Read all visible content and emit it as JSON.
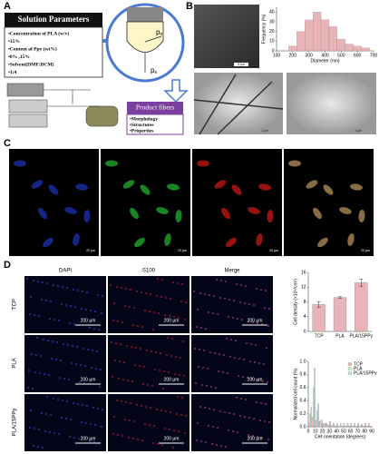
{
  "panel_a": {
    "label": "A",
    "header": "Solution Parameters",
    "params": [
      "•Concentration of PLA (w/v)",
      "•15%",
      "•Content of Ppy (wt%)",
      "•0% ,15%",
      "•Solvent(DMF:DCM)",
      "•1:4"
    ],
    "pressures": [
      {
        "main": "p",
        "sub": "n"
      },
      {
        "main": "p",
        "sub": "e"
      }
    ],
    "output_title": "Product fibers",
    "output_items": [
      "•Morphology",
      "•Structures",
      "•Properties"
    ]
  },
  "panel_b": {
    "label": "B",
    "scale_bars": [
      "5 μm",
      "1 μm",
      "1 μm"
    ]
  },
  "panel_c": {
    "label": "C",
    "scale_bars": [
      "20 μm",
      "20 μm",
      "20 μm",
      "20 μm"
    ]
  },
  "panel_d": {
    "label": "D",
    "columns": [
      "DAPI",
      "S100",
      "Merge"
    ],
    "rows": [
      "TCP",
      "PLA",
      "PLA/15PPy"
    ],
    "scale_bars": [
      [
        "200 μm",
        "200 μm",
        "200 μm"
      ],
      [
        "200 μm",
        "200 μm",
        "200 μm"
      ],
      [
        "200 μm",
        "200 μm",
        "200 μm"
      ]
    ]
  },
  "chart_data": [
    {
      "type": "histogram",
      "x_label": "Diameter (nm)",
      "y_label": "Frequency (%)",
      "bins": [
        175,
        225,
        275,
        325,
        375,
        425,
        475,
        525,
        575,
        625,
        675
      ],
      "values": [
        5,
        20,
        32,
        40,
        32,
        25,
        12,
        7,
        5,
        3
      ],
      "color": "#e8b4b8",
      "xlim": [
        100,
        700
      ],
      "xticks": [
        100,
        200,
        300,
        400,
        500,
        600,
        700
      ],
      "ylim": [
        0,
        45
      ],
      "yticks": [
        0,
        10,
        20,
        30,
        40
      ]
    },
    {
      "type": "bar",
      "y_label": "Cell density (×10⁴/cm²)",
      "categories": [
        "TCP",
        "PLA",
        "PLA/15PPy"
      ],
      "values": [
        7.3,
        9.2,
        13.2
      ],
      "errors": [
        0.8,
        0.2,
        1.0
      ],
      "color": "#e8b4b8",
      "ylim": [
        0,
        16
      ],
      "yticks": [
        0,
        4,
        8,
        12,
        16
      ]
    },
    {
      "type": "histogram",
      "x_label": "Cell orientation (degrees)",
      "y_label": "Normalized cell count (%)",
      "bins": [
        0,
        5,
        10,
        15,
        20,
        25,
        30,
        35,
        40,
        45,
        50,
        55,
        60,
        65,
        70,
        75,
        80,
        85,
        90
      ],
      "series": [
        {
          "name": "TCP",
          "color": "#e8b4b8",
          "values": [
            0.05,
            0.15,
            0.1,
            0.08,
            0.05,
            0.05,
            0.08,
            0.05,
            0.05,
            0.05,
            0.05,
            0.05,
            0.05,
            0.05,
            0.05,
            0.04,
            0.05,
            0.05
          ]
        },
        {
          "name": "PLA",
          "color": "#c7e6c0",
          "values": [
            0.2,
            0.6,
            0.25,
            0.1,
            0.05,
            0.03,
            0.02,
            0.02,
            0.01,
            0.01,
            0.01,
            0.01,
            0.01,
            0.01,
            0.01,
            0.01,
            0.01,
            0.01
          ]
        },
        {
          "name": "PLA/15PPy",
          "color": "#b8dcea",
          "values": [
            0.3,
            0.9,
            0.35,
            0.1,
            0.05,
            0.03,
            0.02,
            0.01,
            0.01,
            0.01,
            0.01,
            0.01,
            0.01,
            0.01,
            0.01,
            0.01,
            0.01,
            0.01
          ]
        }
      ],
      "xlim": [
        0,
        90
      ],
      "xticks": [
        0,
        10,
        20,
        30,
        40,
        50,
        60,
        70,
        80,
        90
      ],
      "ylim": [
        0,
        1.0
      ],
      "yticks": [
        {
          "value": 0,
          "label": "0.0"
        },
        {
          "value": 0.2,
          "label": "0.2"
        },
        {
          "value": 0.4,
          "label": "0.4"
        },
        {
          "value": 0.6,
          "label": "0.6"
        },
        {
          "value": 0.8,
          "label": "0.8"
        },
        {
          "value": 1.0,
          "label": "1.0"
        }
      ],
      "legend": "upper right"
    }
  ]
}
